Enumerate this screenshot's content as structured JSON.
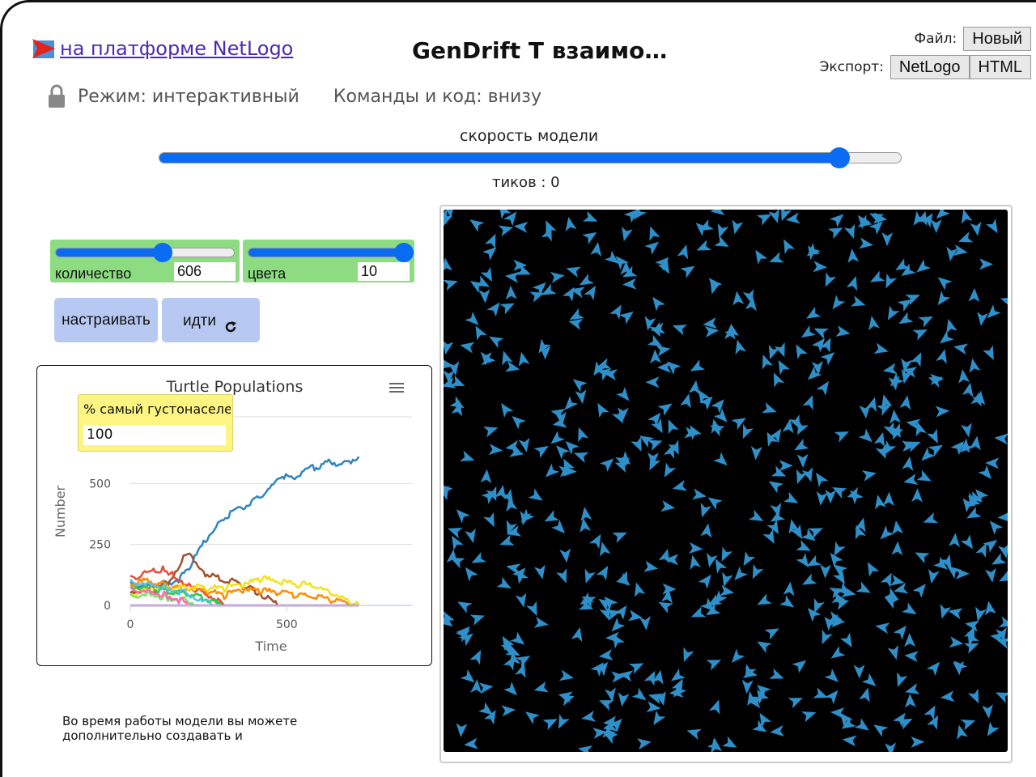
{
  "header": {
    "brand_link": "на платформе NetLogo",
    "title": "GenDrift T взаимо…",
    "file_label": "Файл:",
    "file_new_button": "Новый",
    "export_label": "Экспорт:",
    "export_netlogo_button": "NetLogo",
    "export_html_button": "HTML"
  },
  "mode": {
    "mode_text": "Режим: интерактивный",
    "commands_text": "Команды и код: внизу"
  },
  "speed": {
    "label": "скорость модели",
    "value_fraction": 0.915,
    "ticks_text": "тиков : 0"
  },
  "sliders": [
    {
      "name": "количество",
      "value": "606",
      "fraction": 0.6
    },
    {
      "name": "цвета",
      "value": "10",
      "fraction": 0.97
    }
  ],
  "buttons": {
    "setup": "настраивать",
    "go": "идти",
    "go_icon": "forever-loop-icon"
  },
  "monitor": {
    "name": "% самый густонаселенный",
    "value": "100"
  },
  "chart_data": {
    "type": "line",
    "title": "Turtle Populations",
    "xlabel": "Time",
    "ylabel": "Number",
    "xlim": [
      0,
      900
    ],
    "ylim": [
      0,
      750
    ],
    "x_ticks": [
      "0",
      "500"
    ],
    "y_ticks": [
      "0",
      "250",
      "500"
    ],
    "menu_icon": "hamburger-menu-icon",
    "series": [
      {
        "name": "blue",
        "color": "#2e86c1",
        "points": [
          [
            0,
            90
          ],
          [
            60,
            80
          ],
          [
            120,
            90
          ],
          [
            160,
            110
          ],
          [
            200,
            180
          ],
          [
            240,
            270
          ],
          [
            280,
            330
          ],
          [
            320,
            380
          ],
          [
            360,
            400
          ],
          [
            400,
            440
          ],
          [
            440,
            470
          ],
          [
            480,
            530
          ],
          [
            520,
            520
          ],
          [
            560,
            560
          ],
          [
            600,
            570
          ],
          [
            640,
            590
          ],
          [
            680,
            580
          ],
          [
            730,
            610
          ]
        ]
      },
      {
        "name": "brown",
        "color": "#a0522d",
        "points": [
          [
            0,
            60
          ],
          [
            80,
            60
          ],
          [
            120,
            100
          ],
          [
            150,
            150
          ],
          [
            170,
            200
          ],
          [
            190,
            210
          ],
          [
            210,
            180
          ],
          [
            240,
            130
          ],
          [
            280,
            110
          ],
          [
            320,
            100
          ],
          [
            360,
            80
          ],
          [
            400,
            60
          ],
          [
            440,
            30
          ],
          [
            470,
            0
          ]
        ]
      },
      {
        "name": "red",
        "color": "#e74c3c",
        "points": [
          [
            0,
            110
          ],
          [
            40,
            130
          ],
          [
            80,
            140
          ],
          [
            110,
            150
          ],
          [
            140,
            120
          ],
          [
            170,
            90
          ],
          [
            200,
            70
          ],
          [
            240,
            50
          ],
          [
            280,
            20
          ],
          [
            300,
            0
          ]
        ]
      },
      {
        "name": "orange",
        "color": "#ff8c00",
        "points": [
          [
            0,
            90
          ],
          [
            60,
            100
          ],
          [
            120,
            80
          ],
          [
            180,
            70
          ],
          [
            240,
            60
          ],
          [
            300,
            40
          ],
          [
            360,
            60
          ],
          [
            420,
            60
          ],
          [
            480,
            50
          ],
          [
            540,
            40
          ],
          [
            600,
            30
          ],
          [
            660,
            20
          ],
          [
            710,
            0
          ]
        ]
      },
      {
        "name": "yellow",
        "color": "#f2e21b",
        "points": [
          [
            0,
            50
          ],
          [
            80,
            60
          ],
          [
            160,
            80
          ],
          [
            240,
            70
          ],
          [
            300,
            70
          ],
          [
            360,
            80
          ],
          [
            420,
            110
          ],
          [
            460,
            100
          ],
          [
            520,
            90
          ],
          [
            580,
            80
          ],
          [
            640,
            50
          ],
          [
            700,
            10
          ],
          [
            730,
            0
          ]
        ]
      },
      {
        "name": "green",
        "color": "#2ecc40",
        "points": [
          [
            0,
            80
          ],
          [
            60,
            70
          ],
          [
            120,
            60
          ],
          [
            180,
            50
          ],
          [
            220,
            40
          ],
          [
            260,
            20
          ],
          [
            290,
            0
          ]
        ]
      },
      {
        "name": "lime",
        "color": "#7fe06b",
        "points": [
          [
            0,
            40
          ],
          [
            60,
            50
          ],
          [
            120,
            30
          ],
          [
            180,
            20
          ],
          [
            220,
            0
          ]
        ]
      },
      {
        "name": "cyan",
        "color": "#5bc0de",
        "points": [
          [
            0,
            100
          ],
          [
            60,
            90
          ],
          [
            120,
            70
          ],
          [
            180,
            50
          ],
          [
            230,
            20
          ],
          [
            260,
            0
          ]
        ]
      },
      {
        "name": "violet",
        "color": "#8e44ad",
        "points": [
          [
            0,
            0
          ],
          [
            730,
            0
          ]
        ]
      },
      {
        "name": "pink",
        "color": "#ff69b4",
        "points": [
          [
            0,
            70
          ],
          [
            60,
            60
          ],
          [
            120,
            40
          ],
          [
            160,
            20
          ],
          [
            190,
            0
          ]
        ]
      }
    ]
  },
  "world": {
    "background": "#000000",
    "turtle_color": "#2e8fc9",
    "turtle_count": 606
  },
  "info_text": "Во время работы модели вы можете дополнительно создавать и"
}
